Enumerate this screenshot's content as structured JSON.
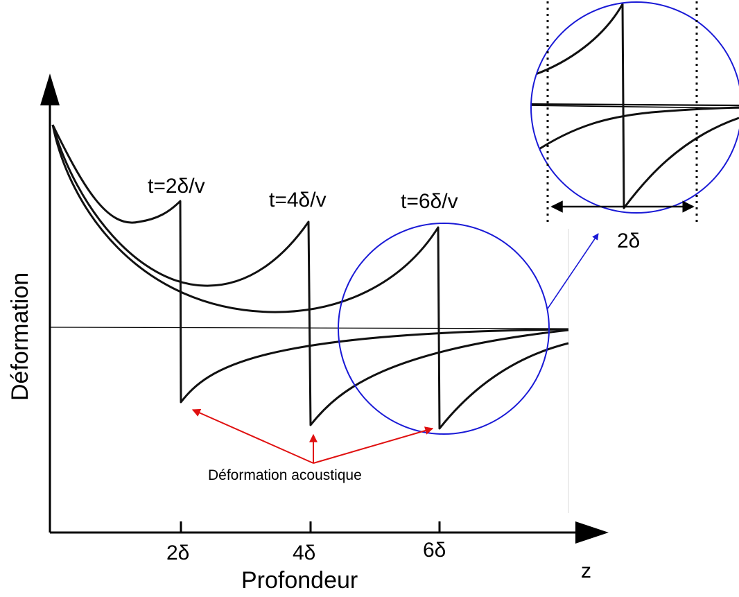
{
  "figure": {
    "y_axis_label": "Déformation",
    "x_axis_label": "Profondeur",
    "x_axis_symbol": "z",
    "x_ticks": [
      "2δ",
      "4δ",
      "6δ"
    ],
    "time_labels": [
      "t=2δ/v",
      "t=4δ/v",
      "t=6δ/v"
    ],
    "annotation": "Déformation acoustique",
    "zoom_scale_label": "2δ",
    "colors": {
      "curves": "#111111",
      "zoom_circle": "#1a1ad6",
      "annotation_arrows": "#e01010"
    }
  }
}
